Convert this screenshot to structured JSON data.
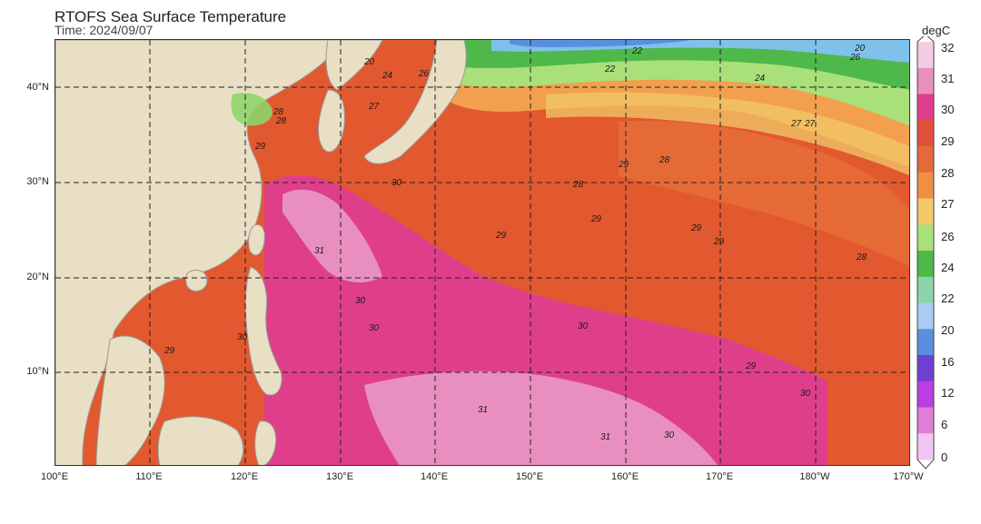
{
  "title": "RTOFS Sea Surface Temperature",
  "subtitle": "Time: 2024/09/07",
  "lat_labels": [
    "40°N",
    "30°N",
    "20°N",
    "10°N"
  ],
  "lon_labels": [
    "100°E",
    "110°E",
    "120°E",
    "130°E",
    "140°E",
    "150°E",
    "160°E",
    "170°E",
    "180°W",
    "170°W"
  ],
  "colorbar": {
    "unit": "degC",
    "ticks": [
      "32",
      "31",
      "30",
      "29",
      "28",
      "27",
      "26",
      "24",
      "22",
      "20",
      "16",
      "12",
      "6",
      "0"
    ],
    "colors": [
      "#f3cde3",
      "#e98fc0",
      "#df3f8a",
      "#e0503c",
      "#e46a3a",
      "#ee8f45",
      "#f2c86a",
      "#a8e07a",
      "#4fb84a",
      "#8bd3a8",
      "#a9cdf2",
      "#5a8fe0",
      "#6f3fd1",
      "#b93fe0",
      "#e07fd8",
      "#f2c6f0"
    ]
  },
  "contour_labels": [
    "20",
    "24",
    "26",
    "22",
    "27",
    "28",
    "29",
    "30",
    "31",
    "28",
    "29",
    "30",
    "29",
    "28",
    "27",
    "29",
    "30",
    "31",
    "30",
    "29",
    "28",
    "29",
    "30",
    "31",
    "30",
    "29",
    "28",
    "30",
    "29",
    "27",
    "24",
    "26",
    "22",
    "20"
  ],
  "fields": {
    "land": "#e8dfc4",
    "coast": "#9a9a9a",
    "grid": "#222222"
  }
}
